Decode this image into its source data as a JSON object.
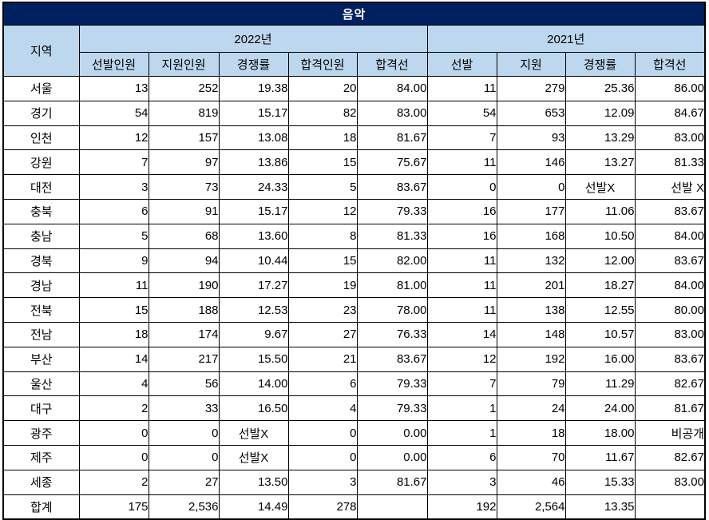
{
  "colors": {
    "title_bg": "#002060",
    "title_text": "#FFFFFF",
    "header_bg": "#BDD7EE",
    "cutoff_2022_text": "#0070C0",
    "border": "#000000"
  },
  "chart_data": {
    "type": "table",
    "title": "음악",
    "region_header": "지역",
    "year_groups": [
      {
        "label": "2022년",
        "columns": [
          "선발인원",
          "지원인원",
          "경쟁률",
          "합격인원",
          "합격선"
        ]
      },
      {
        "label": "2021년",
        "columns": [
          "선발",
          "지원",
          "경쟁률",
          "합격선"
        ]
      }
    ],
    "rows": [
      {
        "region": "서울",
        "cells": [
          "13",
          "252",
          "19.38",
          "20",
          "84.00",
          "11",
          "279",
          "25.36",
          "86.00"
        ]
      },
      {
        "region": "경기",
        "cells": [
          "54",
          "819",
          "15.17",
          "82",
          "83.00",
          "54",
          "653",
          "12.09",
          "84.67"
        ]
      },
      {
        "region": "인천",
        "cells": [
          "12",
          "157",
          "13.08",
          "18",
          "81.67",
          "7",
          "93",
          "13.29",
          "83.00"
        ]
      },
      {
        "region": "강원",
        "cells": [
          "7",
          "97",
          "13.86",
          "15",
          "75.67",
          "11",
          "146",
          "13.27",
          "81.33"
        ]
      },
      {
        "region": "대전",
        "cells": [
          "3",
          "73",
          "24.33",
          "5",
          "83.67",
          "0",
          "0",
          "선발X",
          "선발 X"
        ]
      },
      {
        "region": "충북",
        "cells": [
          "6",
          "91",
          "15.17",
          "12",
          "79.33",
          "16",
          "177",
          "11.06",
          "83.67"
        ]
      },
      {
        "region": "충남",
        "cells": [
          "5",
          "68",
          "13.60",
          "8",
          "81.33",
          "16",
          "168",
          "10.50",
          "84.00"
        ]
      },
      {
        "region": "경북",
        "cells": [
          "9",
          "94",
          "10.44",
          "15",
          "82.00",
          "11",
          "132",
          "12.00",
          "83.67"
        ]
      },
      {
        "region": "경남",
        "cells": [
          "11",
          "190",
          "17.27",
          "19",
          "81.00",
          "11",
          "201",
          "18.27",
          "84.00"
        ]
      },
      {
        "region": "전북",
        "cells": [
          "15",
          "188",
          "12.53",
          "23",
          "78.00",
          "11",
          "138",
          "12.55",
          "80.00"
        ]
      },
      {
        "region": "전남",
        "cells": [
          "18",
          "174",
          "9.67",
          "27",
          "76.33",
          "14",
          "148",
          "10.57",
          "83.00"
        ]
      },
      {
        "region": "부산",
        "cells": [
          "14",
          "217",
          "15.50",
          "21",
          "83.67",
          "12",
          "192",
          "16.00",
          "83.67"
        ]
      },
      {
        "region": "울산",
        "cells": [
          "4",
          "56",
          "14.00",
          "6",
          "79.33",
          "7",
          "79",
          "11.29",
          "82.67"
        ]
      },
      {
        "region": "대구",
        "cells": [
          "2",
          "33",
          "16.50",
          "4",
          "79.33",
          "1",
          "24",
          "24.00",
          "81.67"
        ]
      },
      {
        "region": "광주",
        "cells": [
          "0",
          "0",
          "선발X",
          "0",
          "0.00",
          "1",
          "18",
          "18.00",
          "비공개"
        ]
      },
      {
        "region": "제주",
        "cells": [
          "0",
          "0",
          "선발X",
          "0",
          "0.00",
          "6",
          "70",
          "11.67",
          "82.67"
        ]
      },
      {
        "region": "세종",
        "cells": [
          "2",
          "27",
          "13.50",
          "3",
          "81.67",
          "3",
          "46",
          "15.33",
          "83.00"
        ]
      },
      {
        "region": "합계",
        "cells": [
          "175",
          "2,536",
          "14.49",
          "278",
          "",
          "192",
          "2,564",
          "13.35",
          ""
        ]
      }
    ]
  }
}
